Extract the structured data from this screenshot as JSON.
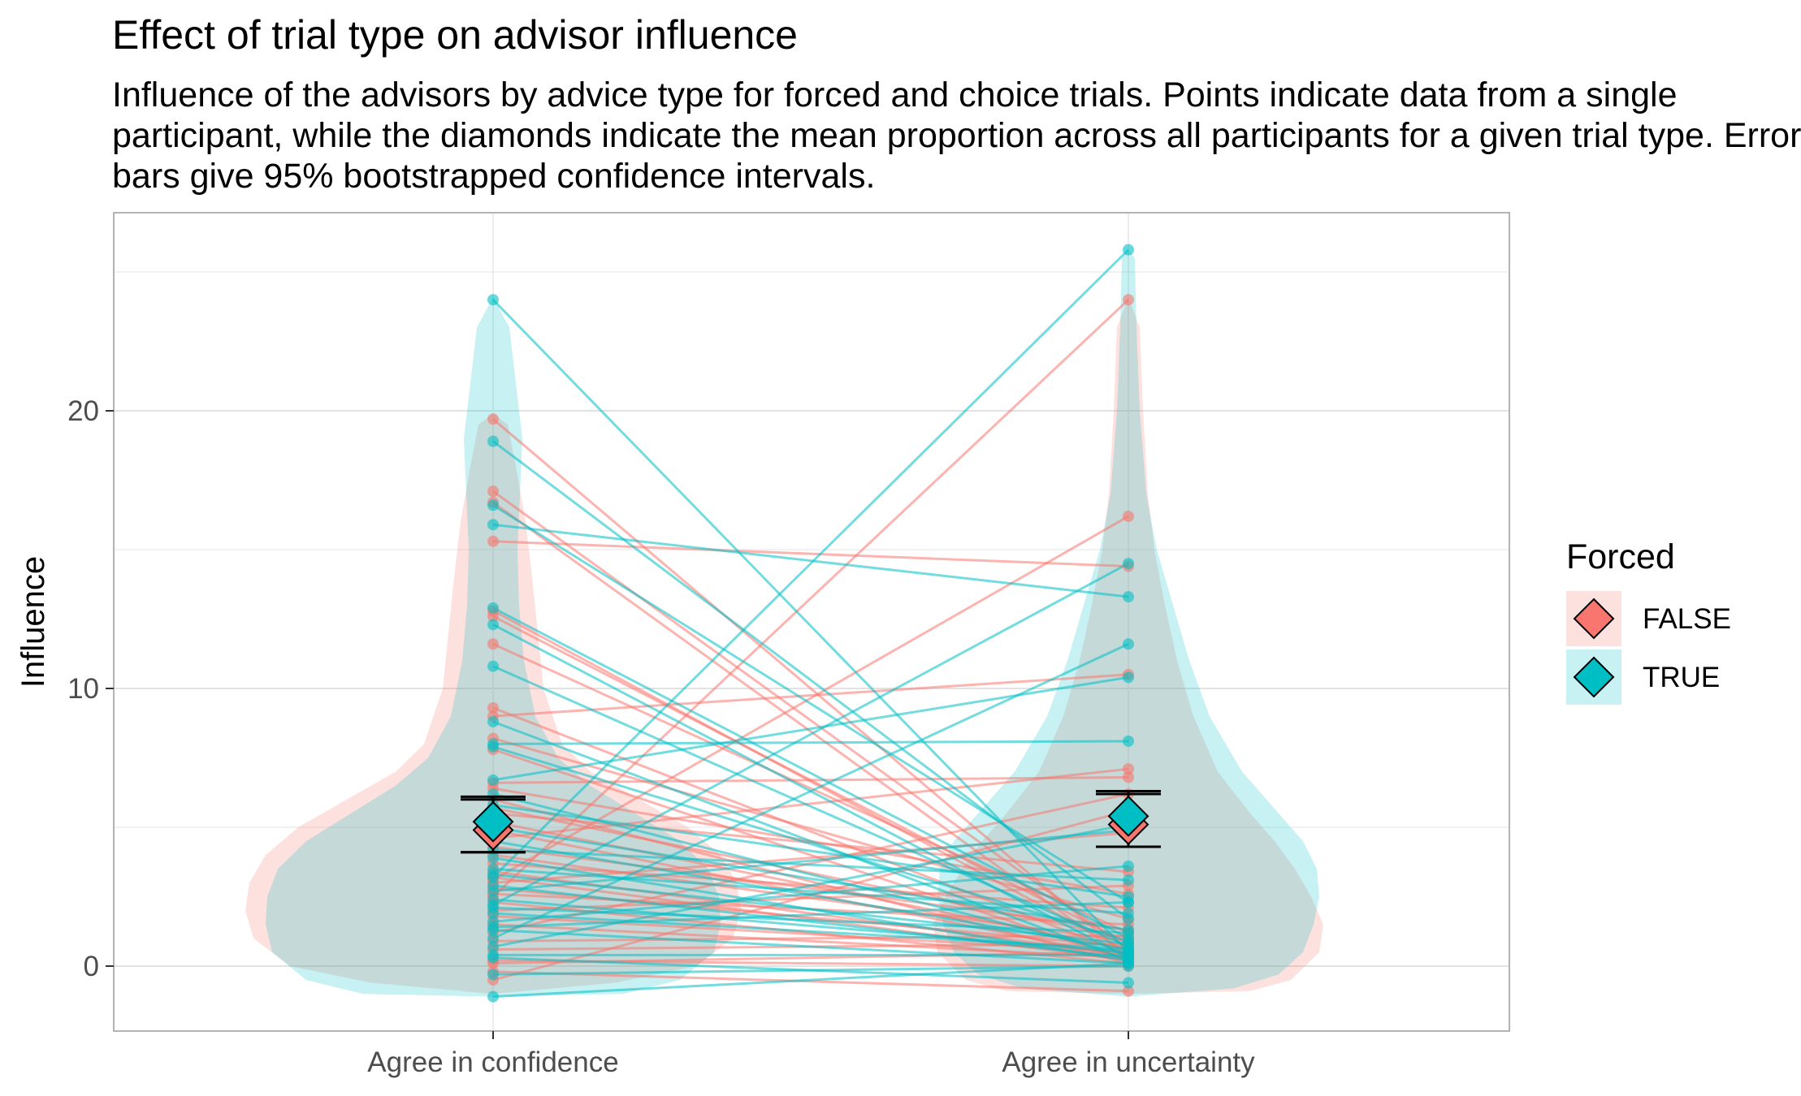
{
  "chart_data": {
    "type": "violin-scatter",
    "title": "Effect of trial type on advisor influence",
    "subtitle": "Influence of the advisors by advice type for forced and choice trials. Points indicate data from a single\nparticipant, while the diamonds indicate the mean proportion across all participants for a given trial type. Error\nbars give 95% bootstrapped confidence intervals.",
    "xlabel": "",
    "ylabel": "Influence",
    "categories": [
      "Agree in confidence",
      "Agree in uncertainty"
    ],
    "y_ticks": [
      0,
      10,
      20
    ],
    "ylim": [
      -2.4,
      27
    ],
    "grid": true,
    "legend": {
      "title": "Forced",
      "position": "right",
      "entries": [
        {
          "label": "FALSE",
          "color": "#F8766D"
        },
        {
          "label": "TRUE",
          "color": "#00BFC4"
        }
      ]
    },
    "series": [
      {
        "name": "FALSE",
        "color": "#F8766D",
        "mean": [
          4.9,
          5.1
        ],
        "ci": [
          [
            4.1,
            6.0
          ],
          [
            4.3,
            6.2
          ]
        ],
        "pairs": [
          [
            19.7,
            0.3
          ],
          [
            17.1,
            0.6
          ],
          [
            16.7,
            0.2
          ],
          [
            15.3,
            14.4
          ],
          [
            12.8,
            0.5
          ],
          [
            12.6,
            0.8
          ],
          [
            11.6,
            1.2
          ],
          [
            9.3,
            0.4
          ],
          [
            9.0,
            10.5
          ],
          [
            8.2,
            1.7
          ],
          [
            7.8,
            0.2
          ],
          [
            6.6,
            6.8
          ],
          [
            6.4,
            2.6
          ],
          [
            6.0,
            0.1
          ],
          [
            5.7,
            1.0
          ],
          [
            5.5,
            3.4
          ],
          [
            5.2,
            0.6
          ],
          [
            4.9,
            0.3
          ],
          [
            4.6,
            7.1
          ],
          [
            4.3,
            1.3
          ],
          [
            4.0,
            0.9
          ],
          [
            3.7,
            2.1
          ],
          [
            3.4,
            0.4
          ],
          [
            3.2,
            0.2
          ],
          [
            3.0,
            4.8
          ],
          [
            2.8,
            0.7
          ],
          [
            2.6,
            1.5
          ],
          [
            2.3,
            0.1
          ],
          [
            2.0,
            2.9
          ],
          [
            1.8,
            0.5
          ],
          [
            1.5,
            0.3
          ],
          [
            1.2,
            6.2
          ],
          [
            0.9,
            1.1
          ],
          [
            0.6,
            0.8
          ],
          [
            0.2,
            0.0
          ],
          [
            0.1,
            0.5
          ],
          [
            -0.2,
            -0.9
          ],
          [
            -0.5,
            5.6
          ],
          [
            3.1,
            16.2
          ],
          [
            2.5,
            24.0
          ]
        ]
      },
      {
        "name": "TRUE",
        "color": "#00BFC4",
        "mean": [
          5.2,
          5.4
        ],
        "ci": [
          [
            4.1,
            6.1
          ],
          [
            4.3,
            6.3
          ]
        ],
        "pairs": [
          [
            24.0,
            0.5
          ],
          [
            18.9,
            1.7
          ],
          [
            16.6,
            2.3
          ],
          [
            15.9,
            13.3
          ],
          [
            12.9,
            1.0
          ],
          [
            12.3,
            0.3
          ],
          [
            10.8,
            0.7
          ],
          [
            8.8,
            0.2
          ],
          [
            8.0,
            8.1
          ],
          [
            7.9,
            0.9
          ],
          [
            6.7,
            10.4
          ],
          [
            6.2,
            0.4
          ],
          [
            5.8,
            2.5
          ],
          [
            5.0,
            1.3
          ],
          [
            4.5,
            0.6
          ],
          [
            4.2,
            3.1
          ],
          [
            3.9,
            0.2
          ],
          [
            3.5,
            1.9
          ],
          [
            3.3,
            0.8
          ],
          [
            2.9,
            0.3
          ],
          [
            2.7,
            4.9
          ],
          [
            2.4,
            0.5
          ],
          [
            2.1,
            1.2
          ],
          [
            1.9,
            0.6
          ],
          [
            1.6,
            3.6
          ],
          [
            1.3,
            0.1
          ],
          [
            1.0,
            11.6
          ],
          [
            0.7,
            5.1
          ],
          [
            0.4,
            0.4
          ],
          [
            -0.3,
            0.0
          ],
          [
            -1.1,
            0.1
          ],
          [
            3.2,
            25.8
          ],
          [
            2.2,
            14.5
          ],
          [
            1.4,
            2.3
          ],
          [
            0.3,
            -0.6
          ]
        ]
      }
    ]
  }
}
